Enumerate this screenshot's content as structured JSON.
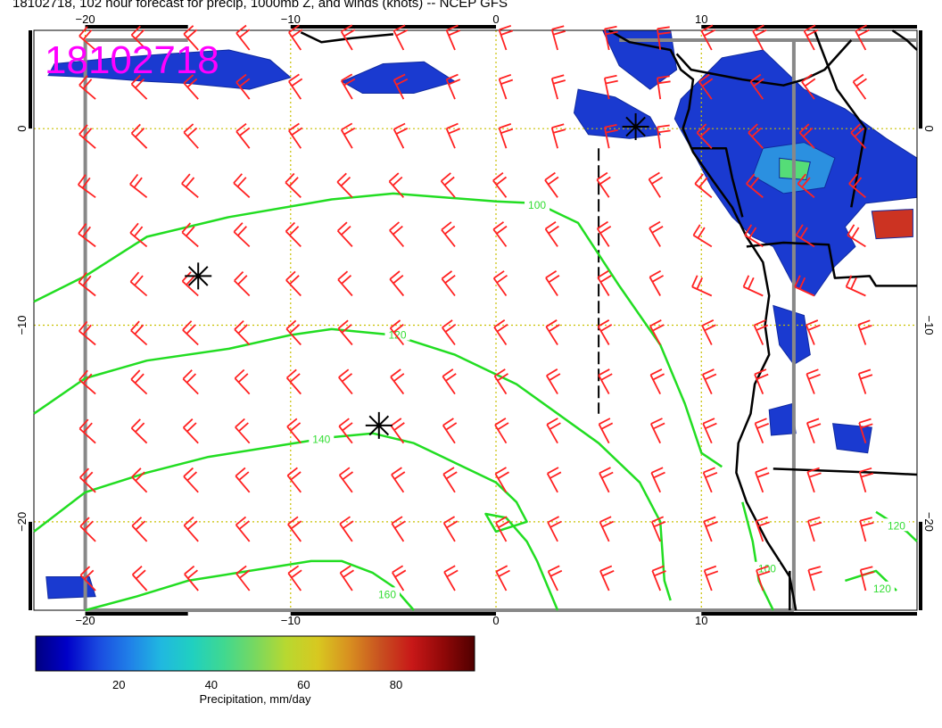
{
  "title": "18102718, 102 hour forecast for precip, 1000mb Z, and winds (knots) -- NCEP GFS",
  "stamp": "18102718",
  "axes": {
    "x_top": [
      {
        "lon": -20,
        "label": "−20"
      },
      {
        "lon": -10,
        "label": "−10"
      },
      {
        "lon": 0,
        "label": "0"
      },
      {
        "lon": 10,
        "label": "10"
      }
    ],
    "x_bottom": [
      {
        "lon": -20,
        "label": "−20"
      },
      {
        "lon": -10,
        "label": "−10"
      },
      {
        "lon": 0,
        "label": "0"
      },
      {
        "lon": 10,
        "label": "10"
      }
    ],
    "y_left": [
      {
        "lat": 0,
        "label": "0"
      },
      {
        "lat": -10,
        "label": "−10"
      },
      {
        "lat": -20,
        "label": "−20"
      }
    ],
    "y_right": [
      {
        "lat": 0,
        "label": "0"
      },
      {
        "lat": -10,
        "label": "−10"
      },
      {
        "lat": -20,
        "label": "−20"
      }
    ],
    "lon_range": [
      -22.5,
      20.5
    ],
    "lat_range": [
      -24.5,
      5
    ]
  },
  "contours": {
    "color": "#22dd22",
    "lines": [
      {
        "label": "100",
        "points": [
          [
            -22.5,
            -8.8
          ],
          [
            -20,
            -7.5
          ],
          [
            -17,
            -5.5
          ],
          [
            -13,
            -4.5
          ],
          [
            -8,
            -3.6
          ],
          [
            -5,
            -3.3
          ],
          [
            0,
            -3.7
          ],
          [
            2,
            -3.8
          ],
          [
            4,
            -4.8
          ],
          [
            6,
            -8
          ],
          [
            8,
            -11
          ],
          [
            9.2,
            -14
          ],
          [
            10,
            -16.5
          ],
          [
            11,
            -17.2
          ]
        ],
        "labelAt": [
          2,
          -3.9
        ]
      },
      {
        "label": "120",
        "points": [
          [
            -22.5,
            -14.5
          ],
          [
            -20,
            -12.7
          ],
          [
            -17,
            -11.8
          ],
          [
            -13,
            -11.2
          ],
          [
            -10,
            -10.5
          ],
          [
            -8,
            -10.2
          ],
          [
            -5,
            -10.5
          ],
          [
            -2,
            -11.5
          ],
          [
            1,
            -13
          ],
          [
            3,
            -14.5
          ],
          [
            5,
            -16
          ],
          [
            7,
            -18
          ],
          [
            8,
            -20
          ],
          [
            8.2,
            -23
          ],
          [
            8.5,
            -24
          ]
        ],
        "labelAt": [
          -4.8,
          -10.5
        ]
      },
      {
        "label": "140",
        "points": [
          [
            -22.5,
            -20.5
          ],
          [
            -20,
            -18.5
          ],
          [
            -17,
            -17.5
          ],
          [
            -14,
            -16.7
          ],
          [
            -11,
            -16.2
          ],
          [
            -8,
            -15.7
          ],
          [
            -6,
            -15.5
          ],
          [
            -4,
            -16
          ],
          [
            -2,
            -17
          ],
          [
            0,
            -18
          ],
          [
            1,
            -19
          ],
          [
            1.5,
            -20
          ],
          [
            0,
            -20.5
          ],
          [
            -0.5,
            -19.6
          ],
          [
            0.5,
            -19.8
          ],
          [
            1.5,
            -21
          ],
          [
            2,
            -22
          ],
          [
            3,
            -24.5
          ]
        ],
        "labelAt": [
          -8.5,
          -15.8
        ]
      },
      {
        "label": "160",
        "points": [
          [
            -20,
            -24.5
          ],
          [
            -17.5,
            -23.8
          ],
          [
            -15,
            -23
          ],
          [
            -12,
            -22.5
          ],
          [
            -9,
            -22
          ],
          [
            -7.5,
            -22
          ],
          [
            -6,
            -22.6
          ],
          [
            -5,
            -23.3
          ],
          [
            -4,
            -24.5
          ]
        ],
        "labelAt": [
          -5.3,
          -23.7
        ]
      },
      {
        "label": "100",
        "points": [
          [
            12,
            -19
          ],
          [
            12.5,
            -21
          ],
          [
            12.8,
            -23
          ],
          [
            13.5,
            -24.5
          ]
        ],
        "labelAt": [
          13.2,
          -22.4
        ]
      },
      {
        "label": "120",
        "points": [
          [
            17,
            -23
          ],
          [
            18.5,
            -22.5
          ],
          [
            19.5,
            -23.5
          ]
        ],
        "labelAt": [
          18.8,
          -23.4
        ]
      },
      {
        "label": "120",
        "points": [
          [
            18.5,
            -19.5
          ],
          [
            20,
            -20.5
          ],
          [
            20.5,
            -21
          ]
        ],
        "labelAt": [
          19.5,
          -20.2
        ]
      }
    ]
  },
  "precip_regions": [
    {
      "points": [
        [
          -21.5,
          3.3
        ],
        [
          -18.5,
          3.6
        ],
        [
          -16,
          3.8
        ],
        [
          -13,
          4
        ],
        [
          -11,
          3.5
        ],
        [
          -10,
          2.6
        ],
        [
          -12,
          2
        ],
        [
          -15,
          2.3
        ],
        [
          -17,
          2.4
        ],
        [
          -19.5,
          2.6
        ],
        [
          -21.8,
          2.7
        ]
      ],
      "color": "#1a3ad0"
    },
    {
      "points": [
        [
          -7.5,
          2.4
        ],
        [
          -5.5,
          3.3
        ],
        [
          -3.5,
          3.4
        ],
        [
          -2,
          2.4
        ],
        [
          -4,
          1.8
        ],
        [
          -6.5,
          1.8
        ]
      ],
      "color": "#1a3ad0"
    },
    {
      "points": [
        [
          5.2,
          5
        ],
        [
          8.5,
          5
        ],
        [
          8.8,
          3
        ],
        [
          7.5,
          2
        ],
        [
          6,
          3.2
        ]
      ],
      "color": "#1a3ad0"
    },
    {
      "points": [
        [
          4,
          2
        ],
        [
          5.8,
          1.6
        ],
        [
          7.5,
          0.6
        ],
        [
          8,
          -0.3
        ],
        [
          6.5,
          -0.5
        ],
        [
          4.5,
          -0.3
        ],
        [
          3.8,
          0.8
        ]
      ],
      "color": "#1a3ad0"
    },
    {
      "points": [
        [
          -21.9,
          -22.8
        ],
        [
          -19.8,
          -22.8
        ],
        [
          -19.5,
          -23.8
        ],
        [
          -21.8,
          -23.9
        ]
      ],
      "color": "#1a3ad0"
    },
    {
      "points": [
        [
          9,
          1.5
        ],
        [
          11,
          3.6
        ],
        [
          13,
          4
        ],
        [
          15,
          2
        ],
        [
          17,
          1
        ],
        [
          19,
          -0.5
        ],
        [
          20.5,
          -1.5
        ],
        [
          20.5,
          -3.5
        ],
        [
          18,
          -3.8
        ],
        [
          17,
          -5
        ],
        [
          17.5,
          -6
        ],
        [
          16.5,
          -7
        ],
        [
          15.5,
          -8.5
        ],
        [
          14.5,
          -8
        ],
        [
          13.5,
          -6
        ],
        [
          12.5,
          -5.5
        ],
        [
          11.5,
          -4.5
        ],
        [
          10.5,
          -3
        ],
        [
          9.5,
          -1
        ],
        [
          8.7,
          0.5
        ]
      ],
      "color": "#1a3ad0"
    },
    {
      "points": [
        [
          13,
          -1
        ],
        [
          15,
          -0.7
        ],
        [
          16.5,
          -1.5
        ],
        [
          16,
          -3
        ],
        [
          14,
          -3.3
        ],
        [
          12.5,
          -2.4
        ]
      ],
      "color": "#2b90e0"
    },
    {
      "points": [
        [
          13.8,
          -1.5
        ],
        [
          15.3,
          -1.7
        ],
        [
          15.1,
          -2.6
        ],
        [
          13.8,
          -2.5
        ]
      ],
      "color": "#55dd77"
    },
    {
      "points": [
        [
          18.3,
          -4.2
        ],
        [
          20.3,
          -4.1
        ],
        [
          20.3,
          -5.5
        ],
        [
          18.5,
          -5.6
        ]
      ],
      "color": "#cc3322"
    },
    {
      "points": [
        [
          13.5,
          -9
        ],
        [
          15,
          -9.5
        ],
        [
          15.3,
          -11.5
        ],
        [
          14.5,
          -12
        ],
        [
          13.8,
          -11
        ]
      ],
      "color": "#1a3ad0"
    },
    {
      "points": [
        [
          13.3,
          -14.3
        ],
        [
          14.4,
          -14
        ],
        [
          14.6,
          -15.5
        ],
        [
          13.4,
          -15.6
        ]
      ],
      "color": "#1a3ad0"
    },
    {
      "points": [
        [
          16.4,
          -15
        ],
        [
          18.3,
          -15.2
        ],
        [
          18.1,
          -16.5
        ],
        [
          16.6,
          -16.3
        ]
      ],
      "color": "#1a3ad0"
    }
  ],
  "coast_lines": [
    [
      [
        -9.5,
        4.9
      ],
      [
        -8.5,
        4.4
      ],
      [
        -7,
        4.6
      ],
      [
        -5,
        4.8
      ]
    ],
    [
      [
        5.5,
        5
      ],
      [
        6.5,
        4.4
      ],
      [
        8.5,
        4
      ],
      [
        9,
        3
      ],
      [
        9.6,
        2.5
      ],
      [
        9.4,
        1
      ],
      [
        9.1,
        0
      ],
      [
        9.6,
        -1.2
      ],
      [
        10.6,
        -2.7
      ],
      [
        11.5,
        -4
      ],
      [
        12.2,
        -5.5
      ],
      [
        13,
        -6.8
      ],
      [
        13.3,
        -8.5
      ],
      [
        13.1,
        -10
      ],
      [
        13.3,
        -11.5
      ],
      [
        12.6,
        -13
      ],
      [
        12.4,
        -14.5
      ],
      [
        11.8,
        -16
      ],
      [
        11.7,
        -17.5
      ],
      [
        12.2,
        -19
      ],
      [
        13.2,
        -21
      ],
      [
        14.3,
        -22.8
      ],
      [
        14.6,
        -24.5
      ]
    ],
    [
      [
        8.8,
        3.8
      ],
      [
        9.5,
        3
      ],
      [
        12,
        2.5
      ],
      [
        14,
        2.2
      ],
      [
        15,
        2.5
      ],
      [
        16,
        3
      ],
      [
        17.3,
        4.5
      ]
    ],
    [
      [
        9.5,
        -1
      ],
      [
        11.2,
        -1
      ],
      [
        11.5,
        -2.5
      ],
      [
        12,
        -4.5
      ]
    ],
    [
      [
        12.2,
        -6
      ],
      [
        14,
        -5.8
      ],
      [
        16.2,
        -5.9
      ],
      [
        16.5,
        -7.6
      ],
      [
        18.2,
        -7.5
      ],
      [
        18.5,
        -8
      ],
      [
        20.5,
        -8
      ]
    ],
    [
      [
        13.5,
        -17.3
      ],
      [
        18.5,
        -17.5
      ],
      [
        20.5,
        -17.6
      ]
    ],
    [
      [
        14.3,
        -22.5
      ],
      [
        14.3,
        -24.5
      ]
    ],
    [
      [
        15.5,
        5
      ],
      [
        16.6,
        2
      ],
      [
        18,
        0
      ],
      [
        17.3,
        -4
      ]
    ],
    [
      [
        19.3,
        5
      ],
      [
        20,
        4.5
      ],
      [
        20.5,
        4
      ]
    ]
  ],
  "heavy_frame_segments": [
    [
      [
        -20,
        4.5
      ],
      [
        -15,
        4.5
      ]
    ],
    [
      [
        6,
        4.5
      ],
      [
        20.5,
        4.5
      ]
    ],
    [
      [
        14.5,
        4.5
      ],
      [
        14.5,
        -24.5
      ]
    ],
    [
      [
        -20,
        -24.5
      ],
      [
        14.5,
        -24.5
      ]
    ],
    [
      [
        -20,
        -24.5
      ],
      [
        -20,
        4.5
      ]
    ]
  ],
  "dash_line": [
    [
      5,
      -1
    ],
    [
      5,
      -14.5
    ]
  ],
  "storm_markers": [
    {
      "lon": -14.5,
      "lat": -7.5
    },
    {
      "lon": -5.7,
      "lat": -15.1
    },
    {
      "lon": 6.8,
      "lat": 0.1
    }
  ],
  "wind_barbs": {
    "color": "#ff2222",
    "spacing_deg": 2.5
  },
  "colorbar": {
    "colors": [
      "#000080",
      "#0000c8",
      "#1a4ae0",
      "#2080e8",
      "#20b8e0",
      "#20d0c0",
      "#40d890",
      "#78d860",
      "#b8d830",
      "#d8c820",
      "#d89020",
      "#c85020",
      "#c81818",
      "#900808",
      "#500000"
    ],
    "vmin": 2,
    "vmax": 97,
    "ticks": [
      {
        "value": 20,
        "label": "20"
      },
      {
        "value": 40,
        "label": "40"
      },
      {
        "value": 60,
        "label": "60"
      },
      {
        "value": 80,
        "label": "80"
      }
    ],
    "title": "Precipitation, mm/day"
  }
}
